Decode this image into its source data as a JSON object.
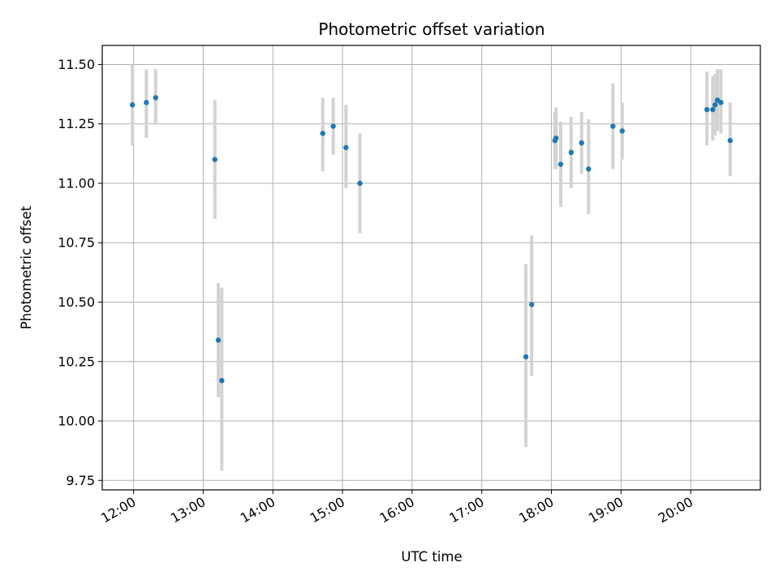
{
  "chart_data": {
    "type": "scatter",
    "title": "Photometric offset variation",
    "xlabel": "UTC time",
    "ylabel": "Photometric offset",
    "x_ticks": [
      "12:00",
      "13:00",
      "14:00",
      "15:00",
      "16:00",
      "17:00",
      "18:00",
      "19:00",
      "20:00"
    ],
    "y_ticks": [
      "9.75",
      "10.00",
      "10.25",
      "10.50",
      "10.75",
      "11.00",
      "11.25",
      "11.50"
    ],
    "xlim": [
      "11:33",
      "21:00"
    ],
    "ylim": [
      9.71,
      11.58
    ],
    "grid": true,
    "marker_color": "#1f77b4",
    "errorbar_color": "#d3d3d3",
    "series": [
      {
        "points": [
          {
            "x": "11:59",
            "y": 11.33,
            "ylow": 11.16,
            "yhigh": 11.5
          },
          {
            "x": "12:11",
            "y": 11.34,
            "ylow": 11.19,
            "yhigh": 11.48
          },
          {
            "x": "12:19",
            "y": 11.36,
            "ylow": 11.25,
            "yhigh": 11.48
          },
          {
            "x": "13:10",
            "y": 11.1,
            "ylow": 10.85,
            "yhigh": 11.35
          },
          {
            "x": "13:13",
            "y": 10.34,
            "ylow": 10.1,
            "yhigh": 10.58
          },
          {
            "x": "13:16",
            "y": 10.17,
            "ylow": 9.79,
            "yhigh": 10.56
          },
          {
            "x": "14:43",
            "y": 11.21,
            "ylow": 11.05,
            "yhigh": 11.36
          },
          {
            "x": "14:52",
            "y": 11.24,
            "ylow": 11.12,
            "yhigh": 11.36
          },
          {
            "x": "15:03",
            "y": 11.15,
            "ylow": 10.98,
            "yhigh": 11.33
          },
          {
            "x": "15:15",
            "y": 11.0,
            "ylow": 10.79,
            "yhigh": 11.21
          },
          {
            "x": "17:38",
            "y": 10.27,
            "ylow": 9.89,
            "yhigh": 10.66
          },
          {
            "x": "17:43",
            "y": 10.49,
            "ylow": 10.19,
            "yhigh": 10.78
          },
          {
            "x": "18:03",
            "y": 11.18,
            "ylow": 11.06,
            "yhigh": 11.3
          },
          {
            "x": "18:04",
            "y": 11.19,
            "ylow": 11.06,
            "yhigh": 11.32
          },
          {
            "x": "18:08",
            "y": 11.08,
            "ylow": 10.9,
            "yhigh": 11.26
          },
          {
            "x": "18:17",
            "y": 11.13,
            "ylow": 10.98,
            "yhigh": 11.28
          },
          {
            "x": "18:26",
            "y": 11.17,
            "ylow": 11.04,
            "yhigh": 11.3
          },
          {
            "x": "18:32",
            "y": 11.06,
            "ylow": 10.87,
            "yhigh": 11.27
          },
          {
            "x": "18:53",
            "y": 11.24,
            "ylow": 11.06,
            "yhigh": 11.42
          },
          {
            "x": "19:01",
            "y": 11.22,
            "ylow": 11.1,
            "yhigh": 11.34
          },
          {
            "x": "20:14",
            "y": 11.31,
            "ylow": 11.16,
            "yhigh": 11.47
          },
          {
            "x": "20:19",
            "y": 11.31,
            "ylow": 11.18,
            "yhigh": 11.45
          },
          {
            "x": "20:21",
            "y": 11.33,
            "ylow": 11.2,
            "yhigh": 11.46
          },
          {
            "x": "20:23",
            "y": 11.35,
            "ylow": 11.22,
            "yhigh": 11.48
          },
          {
            "x": "20:26",
            "y": 11.34,
            "ylow": 11.21,
            "yhigh": 11.48
          },
          {
            "x": "20:34",
            "y": 11.18,
            "ylow": 11.03,
            "yhigh": 11.34
          }
        ]
      }
    ]
  }
}
